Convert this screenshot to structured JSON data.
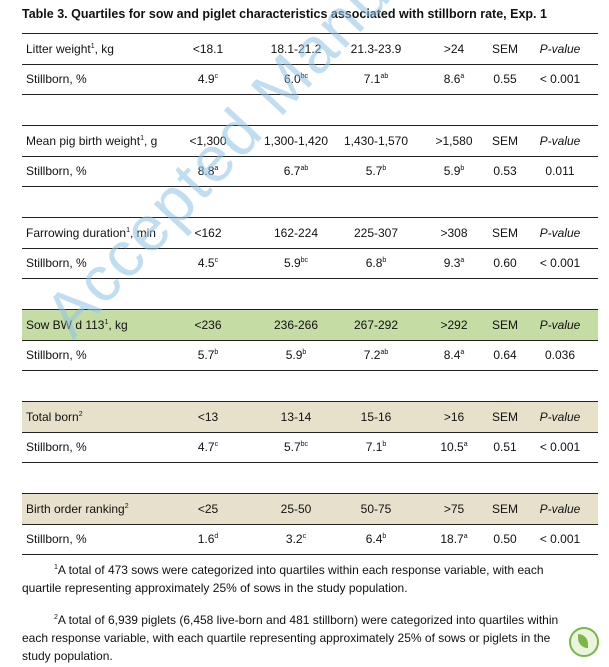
{
  "title": "Table 3. Quartiles for sow and piglet characteristics associated with stillborn rate, Exp. 1",
  "sections": [
    {
      "header": {
        "label": "Litter weight",
        "sup": "1",
        "unit": ", kg",
        "q1": "<18.1",
        "q2": "18.1-21.2",
        "q3": "21.3-23.9",
        "q4": ">24",
        "sem": "SEM",
        "p": "P-value"
      },
      "data": {
        "label": "Stillborn, %",
        "q1": "4.9",
        "q1s": "c",
        "q2": "6.0",
        "q2s": "bc",
        "q3": "7.1",
        "q3s": "ab",
        "q4": "8.6",
        "q4s": "a",
        "sem": "0.55",
        "p": "< 0.001"
      },
      "bg": "#ffffff"
    },
    {
      "header": {
        "label": "Mean pig birth weight",
        "sup": "1",
        "unit": ", g",
        "q1": "<1,300",
        "q2": "1,300-1,420",
        "q3": "1,430-1,570",
        "q4": ">1,580",
        "sem": "SEM",
        "p": "P-value"
      },
      "data": {
        "label": "Stillborn, %",
        "q1": "8.8",
        "q1s": "a",
        "q2": "6.7",
        "q2s": "ab",
        "q3": "5.7",
        "q3s": "b",
        "q4": "5.9",
        "q4s": "b",
        "sem": "0.53",
        "p": "0.011"
      },
      "bg": "#ffffff"
    },
    {
      "header": {
        "label": "Farrowing duration",
        "sup": "1",
        "unit": ", min",
        "q1": "<162",
        "q2": "162-224",
        "q3": "225-307",
        "q4": ">308",
        "sem": "SEM",
        "p": "P-value"
      },
      "data": {
        "label": "Stillborn, %",
        "q1": "4.5",
        "q1s": "c",
        "q2": "5.9",
        "q2s": "bc",
        "q3": "6.8",
        "q3s": "b",
        "q4": "9.3",
        "q4s": "a",
        "sem": "0.60",
        "p": "< 0.001"
      },
      "bg": "#ffffff"
    },
    {
      "header": {
        "label": "Sow BW d 113",
        "sup": "1",
        "unit": ", kg",
        "q1": "<236",
        "q2": "236-266",
        "q3": "267-292",
        "q4": ">292",
        "sem": "SEM",
        "p": "P-value"
      },
      "data": {
        "label": "Stillborn, %",
        "q1": "5.7",
        "q1s": "b",
        "q2": "5.9",
        "q2s": "b",
        "q3": "7.2",
        "q3s": "ab",
        "q4": "8.4",
        "q4s": "a",
        "sem": "0.64",
        "p": "0.036"
      },
      "bg": "#c5dca4"
    },
    {
      "header": {
        "label": "Total born",
        "sup": "2",
        "unit": "",
        "q1": "<13",
        "q2": "13-14",
        "q3": "15-16",
        "q4": ">16",
        "sem": "SEM",
        "p": "P-value"
      },
      "data": {
        "label": "Stillborn, %",
        "q1": "4.7",
        "q1s": "c",
        "q2": "5.7",
        "q2s": "bc",
        "q3": "7.1",
        "q3s": "b",
        "q4": "10.5",
        "q4s": "a",
        "sem": "0.51",
        "p": "< 0.001"
      },
      "bg": "#e7e1cc"
    },
    {
      "header": {
        "label": "Birth order ranking",
        "sup": "2",
        "unit": "",
        "q1": "<25",
        "q2": "25-50",
        "q3": "50-75",
        "q4": ">75",
        "sem": "SEM",
        "p": "P-value"
      },
      "data": {
        "label": "Stillborn, %",
        "q1": "1.6",
        "q1s": "d",
        "q2": "3.2",
        "q2s": "c",
        "q3": "6.4",
        "q3s": "b",
        "q4": "18.7",
        "q4s": "a",
        "sem": "0.50",
        "p": "< 0.001"
      },
      "bg": "#e7e1cc"
    }
  ],
  "notes": [
    {
      "sup": "1",
      "text": "A total of 473 sows were categorized into quartiles within each response variable, with each quartile representing approximately 25% of sows in the study population."
    },
    {
      "sup": "2",
      "text": "A total of 6,939 piglets (6,458 live-born and 481 stillborn) were categorized into quartiles within each response variable, with each quartile representing approximately 25% of sows or piglets in the study population."
    }
  ],
  "watermark": "Accepted Manuscript",
  "colors": {
    "green_row": "#c5dca4",
    "tan_row": "#e7e1cc",
    "watermark": "#8fc3e8"
  }
}
